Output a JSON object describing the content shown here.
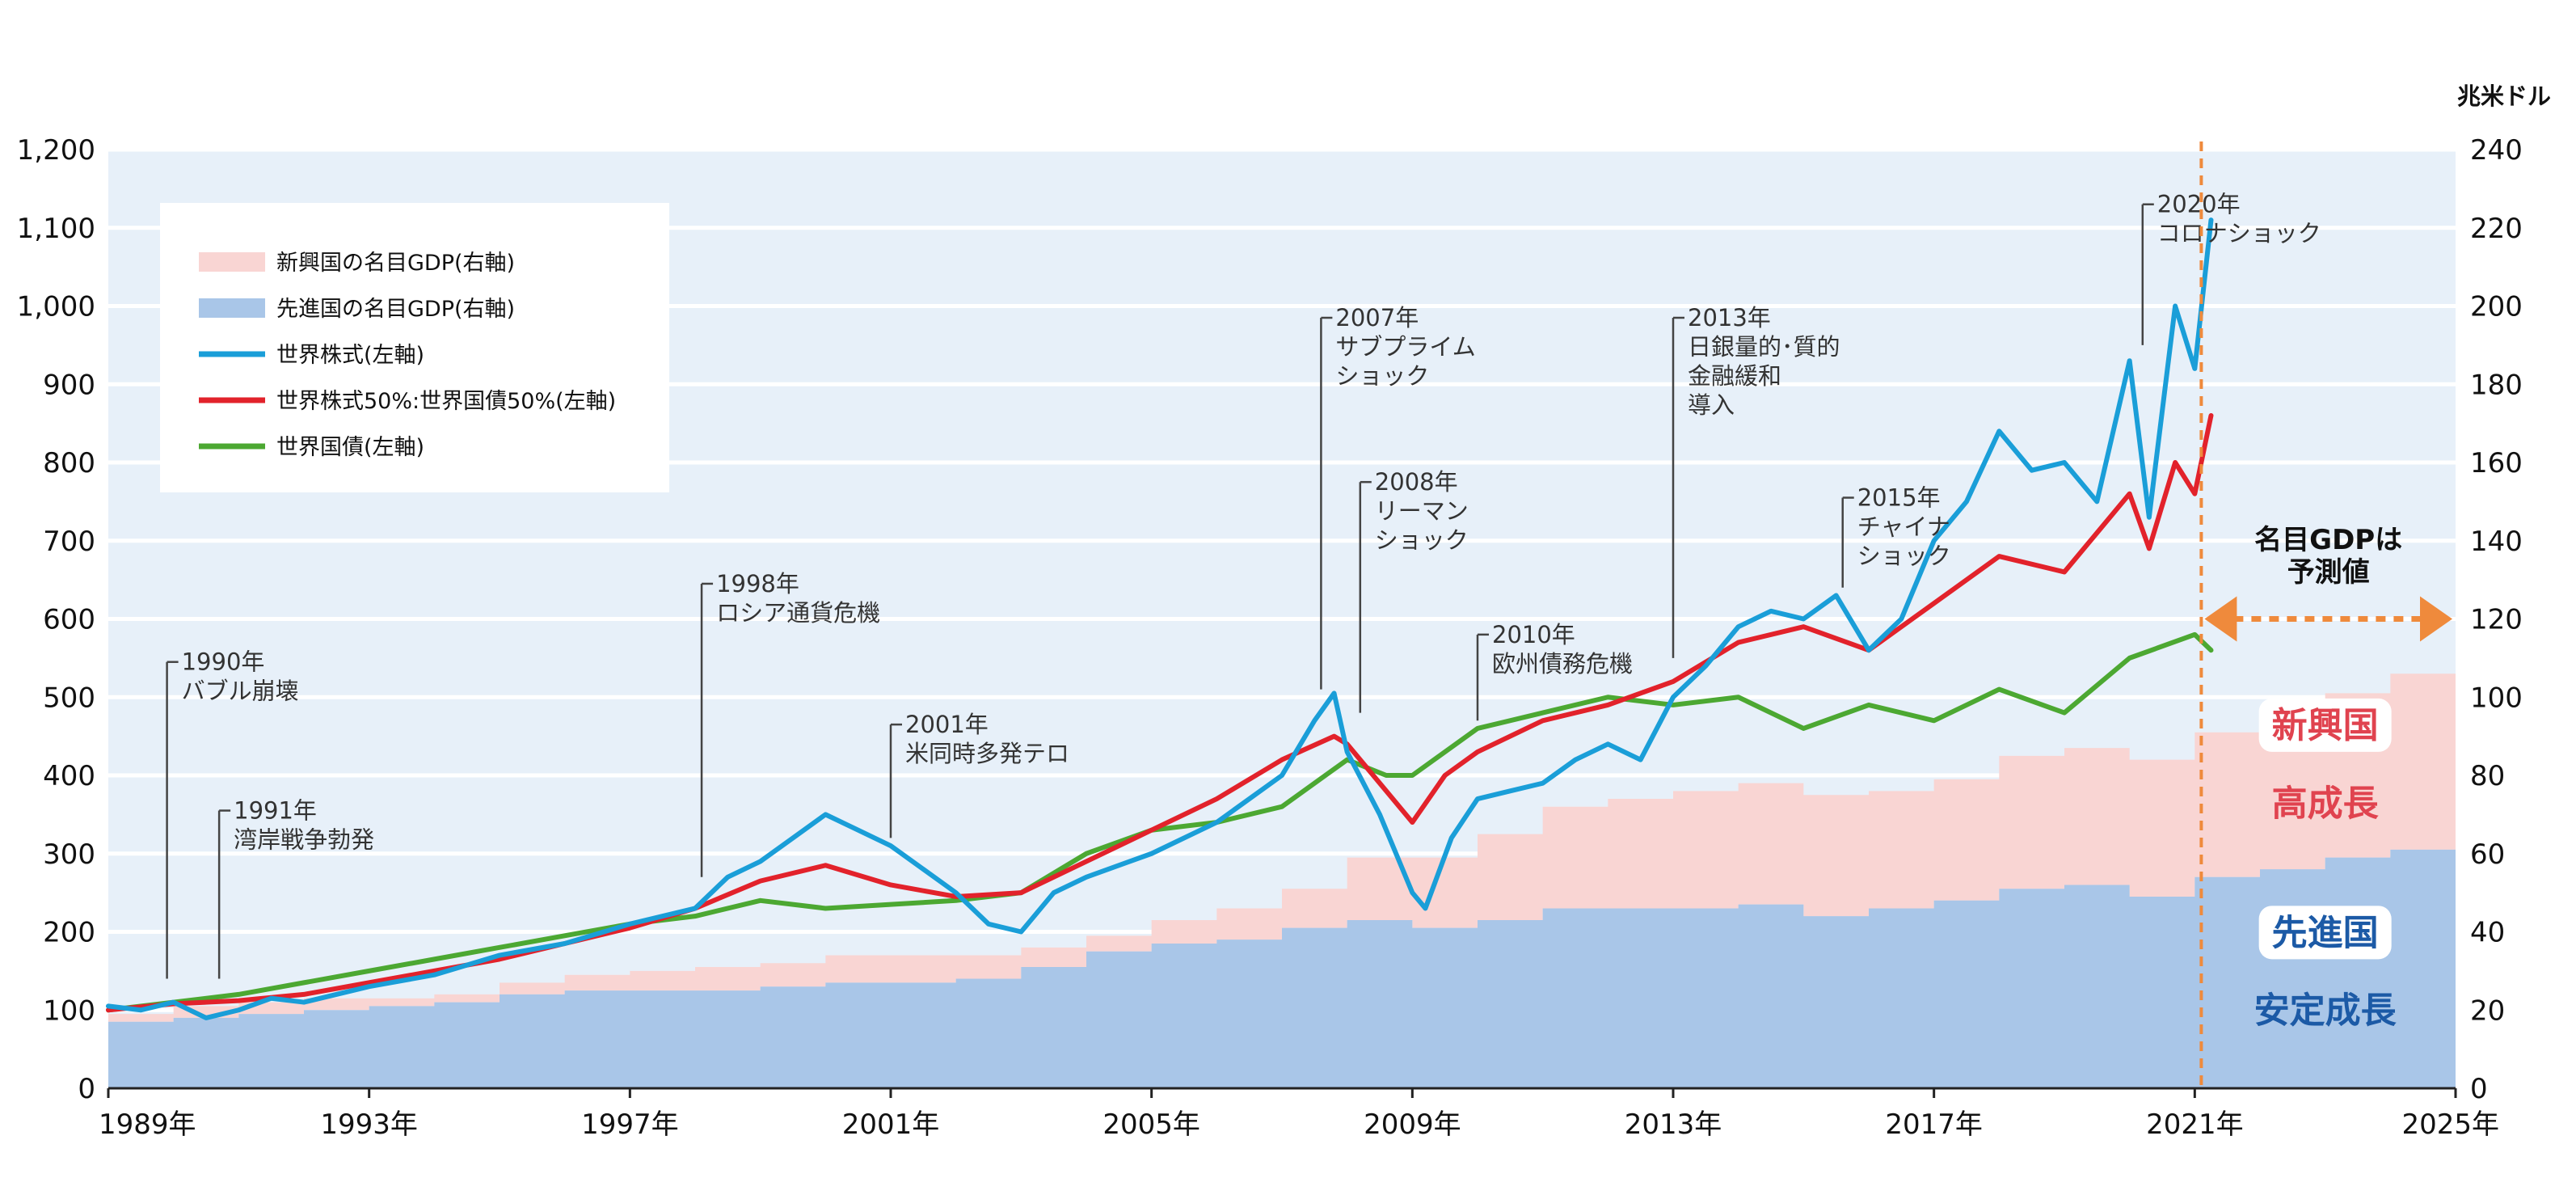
{
  "chart_data": {
    "type": "line",
    "left_axis": {
      "ylim": [
        0,
        1200
      ],
      "ticks": [
        0,
        100,
        200,
        300,
        400,
        500,
        600,
        700,
        800,
        900,
        1000,
        1100,
        1200
      ],
      "tick_labels": [
        "0",
        "100",
        "200",
        "300",
        "400",
        "500",
        "600",
        "700",
        "800",
        "900",
        "1,000",
        "1,100",
        "1,200"
      ]
    },
    "right_axis": {
      "unit": "兆米ドル",
      "ylim": [
        0,
        240
      ],
      "ticks": [
        0,
        20,
        40,
        60,
        80,
        100,
        120,
        140,
        160,
        180,
        200,
        220,
        240
      ],
      "tick_labels": [
        "0",
        "20",
        "40",
        "60",
        "80",
        "100",
        "120",
        "140",
        "160",
        "180",
        "200",
        "220",
        "240"
      ]
    },
    "x_axis": {
      "xlim": [
        1989,
        2025
      ],
      "ticks": [
        1989,
        1993,
        1997,
        2001,
        2005,
        2009,
        2013,
        2017,
        2021,
        2025
      ],
      "tick_labels": [
        "1989年",
        "1993年",
        "1997年",
        "2001年",
        "2005年",
        "2009年",
        "2013年",
        "2017年",
        "2021年",
        "2025年"
      ]
    },
    "grid": true,
    "legend": {
      "placement": "top-left",
      "entries": [
        {
          "label": "新興国の名目GDP(右軸)",
          "kind": "area",
          "color": "#f9d5d3"
        },
        {
          "label": "先進国の名目GDP(右軸)",
          "kind": "area",
          "color": "#a9c6e8"
        },
        {
          "label": "世界株式(左軸)",
          "kind": "line",
          "color": "#1a9ed8"
        },
        {
          "label": "世界株式50%:世界国債50%(左軸)",
          "kind": "line",
          "color": "#e2222b"
        },
        {
          "label": "世界国債(左軸)",
          "kind": "line",
          "color": "#4ca832"
        }
      ]
    },
    "gdp_years": [
      1989,
      1990,
      1991,
      1992,
      1993,
      1994,
      1995,
      1996,
      1997,
      1998,
      1999,
      2000,
      2001,
      2002,
      2003,
      2004,
      2005,
      2006,
      2007,
      2008,
      2009,
      2010,
      2011,
      2012,
      2013,
      2014,
      2015,
      2016,
      2017,
      2018,
      2019,
      2020,
      2021,
      2022,
      2023,
      2024,
      2025
    ],
    "area_series": [
      {
        "name": "先進国の名目GDP(右軸)",
        "axis": "right",
        "color": "#a9c6e8",
        "values": [
          17,
          18,
          19,
          20,
          21,
          22,
          24,
          25,
          25,
          25,
          26,
          27,
          27,
          28,
          31,
          35,
          37,
          38,
          41,
          43,
          41,
          43,
          46,
          46,
          46,
          47,
          44,
          46,
          48,
          51,
          52,
          49,
          54,
          56,
          59,
          61,
          61
        ]
      },
      {
        "name": "新興国の名目GDP(右軸)",
        "axis": "right",
        "color": "#f9d5d3",
        "values": [
          19,
          21,
          22,
          23,
          23,
          24,
          27,
          29,
          30,
          31,
          32,
          34,
          34,
          34,
          36,
          39,
          43,
          46,
          51,
          59,
          59,
          65,
          72,
          74,
          76,
          78,
          75,
          76,
          79,
          85,
          87,
          84,
          91,
          96,
          101,
          106,
          108
        ]
      }
    ],
    "series": [
      {
        "name": "世界株式(左軸)",
        "axis": "left",
        "color": "#1a9ed8",
        "x": [
          1989,
          1989.5,
          1990,
          1990.5,
          1991,
          1991.5,
          1992,
          1993,
          1994,
          1995,
          1996,
          1997,
          1998,
          1998.5,
          1999,
          1999.5,
          2000,
          2000.5,
          2001,
          2001.5,
          2002,
          2002.5,
          2003,
          2003.5,
          2004,
          2005,
          2006,
          2007,
          2007.5,
          2007.8,
          2008,
          2008.5,
          2009,
          2009.2,
          2009.6,
          2010,
          2010.5,
          2011,
          2011.5,
          2012,
          2012.5,
          2013,
          2013.5,
          2014,
          2014.5,
          2015,
          2015.5,
          2016,
          2016.5,
          2017,
          2017.5,
          2018,
          2018.5,
          2019,
          2019.5,
          2020,
          2020.3,
          2020.7,
          2021,
          2021.25
        ],
        "values": [
          105,
          100,
          110,
          90,
          100,
          115,
          110,
          130,
          145,
          170,
          185,
          210,
          230,
          270,
          290,
          320,
          350,
          330,
          310,
          280,
          250,
          210,
          200,
          250,
          270,
          300,
          340,
          400,
          470,
          505,
          430,
          350,
          250,
          230,
          320,
          370,
          380,
          390,
          420,
          440,
          420,
          500,
          540,
          590,
          610,
          600,
          630,
          560,
          600,
          700,
          750,
          840,
          790,
          800,
          750,
          930,
          730,
          1000,
          920,
          1110
        ]
      },
      {
        "name": "世界株式50%:世界国債50%(左軸)",
        "axis": "left",
        "color": "#e2222b",
        "x": [
          1989,
          1990,
          1991,
          1992,
          1993,
          1994,
          1995,
          1996,
          1997,
          1998,
          1999,
          2000,
          2001,
          2002,
          2003,
          2004,
          2005,
          2006,
          2007,
          2007.8,
          2008,
          2008.6,
          2009,
          2009.5,
          2010,
          2011,
          2012,
          2013,
          2014,
          2015,
          2016,
          2017,
          2018,
          2019,
          2020,
          2020.3,
          2020.7,
          2021,
          2021.25
        ],
        "values": [
          100,
          108,
          112,
          120,
          135,
          150,
          165,
          185,
          205,
          230,
          265,
          285,
          260,
          245,
          250,
          290,
          330,
          370,
          420,
          450,
          440,
          380,
          340,
          400,
          430,
          470,
          490,
          520,
          570,
          590,
          560,
          620,
          680,
          660,
          760,
          690,
          800,
          760,
          860
        ]
      },
      {
        "name": "世界国債(左軸)",
        "axis": "left",
        "color": "#4ca832",
        "x": [
          1989,
          1990,
          1991,
          1992,
          1993,
          1994,
          1995,
          1996,
          1997,
          1998,
          1999,
          2000,
          2001,
          2002,
          2003,
          2004,
          2005,
          2006,
          2007,
          2008,
          2008.6,
          2009,
          2010,
          2011,
          2012,
          2013,
          2014,
          2015,
          2016,
          2017,
          2018,
          2019,
          2020,
          2021,
          2021.25
        ],
        "values": [
          100,
          110,
          120,
          135,
          150,
          165,
          180,
          195,
          210,
          220,
          240,
          230,
          235,
          240,
          250,
          300,
          330,
          340,
          360,
          420,
          400,
          400,
          460,
          480,
          500,
          490,
          500,
          460,
          490,
          470,
          510,
          480,
          550,
          580,
          560
        ]
      }
    ],
    "annotations": [
      {
        "id": "a1990",
        "lines": [
          "1990年",
          "バブル崩壊"
        ],
        "x": 1989.9,
        "y_base": 140,
        "y_top": 545
      },
      {
        "id": "a1991",
        "lines": [
          "1991年",
          "湾岸戦争勃発"
        ],
        "x": 1990.7,
        "y_base": 140,
        "y_top": 355
      },
      {
        "id": "a1998",
        "lines": [
          "1998年",
          "ロシア通貨危機"
        ],
        "x": 1998.1,
        "y_base": 270,
        "y_top": 645
      },
      {
        "id": "a2001",
        "lines": [
          "2001年",
          "米同時多発テロ"
        ],
        "x": 2001.0,
        "y_base": 320,
        "y_top": 465
      },
      {
        "id": "a2007",
        "lines": [
          "2007年",
          "サブプライム",
          "ショック"
        ],
        "x": 2007.6,
        "y_base": 510,
        "y_top": 985
      },
      {
        "id": "a2008",
        "lines": [
          "2008年",
          "リーマン",
          "ショック"
        ],
        "x": 2008.2,
        "y_base": 480,
        "y_top": 775
      },
      {
        "id": "a2010",
        "lines": [
          "2010年",
          "欧州債務危機"
        ],
        "x": 2010.0,
        "y_base": 470,
        "y_top": 580
      },
      {
        "id": "a2013",
        "lines": [
          "2013年",
          "日銀量的･質的",
          "金融緩和",
          "導入"
        ],
        "x": 2013.0,
        "y_base": 550,
        "y_top": 985
      },
      {
        "id": "a2015",
        "lines": [
          "2015年",
          "チャイナ",
          "ショック"
        ],
        "x": 2015.6,
        "y_base": 640,
        "y_top": 755
      },
      {
        "id": "a2020",
        "lines": [
          "2020年",
          "コロナショック"
        ],
        "x": 2020.2,
        "y_base": 950,
        "y_top": 1130
      }
    ],
    "forecast": {
      "start": 2021.1,
      "label_lines": [
        "名目GDPは",
        "予測値"
      ]
    },
    "region_labels": {
      "emerging": {
        "title": "新興国",
        "subtitle": "高成長"
      },
      "developed": {
        "title": "先進国",
        "subtitle": "安定成長"
      }
    }
  }
}
